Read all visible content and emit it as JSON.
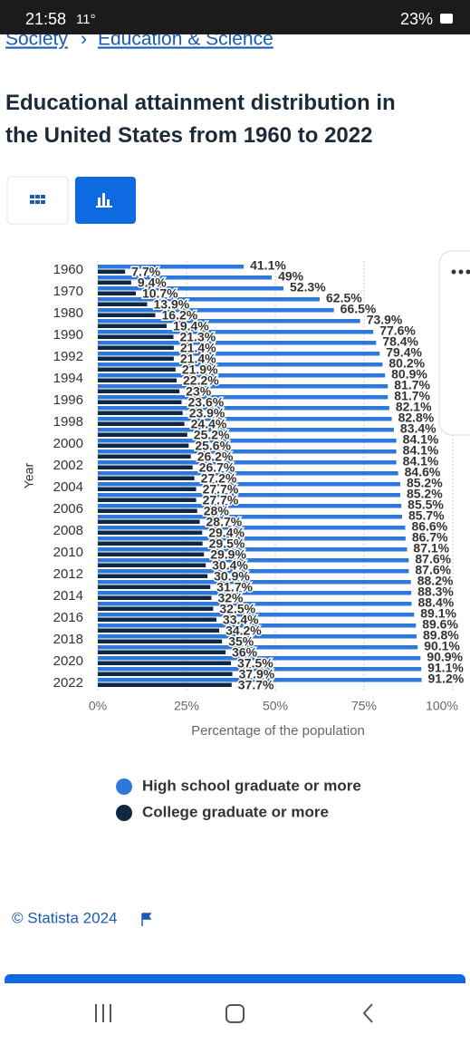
{
  "status_bar": {
    "time": "21:58",
    "temperature": "11°",
    "battery": "23%"
  },
  "breadcrumb": {
    "parent": "Society",
    "separator": "›",
    "current": "Education & Science"
  },
  "source": "© Statista 2024",
  "chart_data": {
    "type": "bar",
    "orientation": "horizontal",
    "title": "Educational attainment distribution in the United States from 1960 to 2022",
    "y_axis_title": "Year",
    "x_axis_title": "Percentage of the population",
    "categories": [
      "1960",
      null,
      "1970",
      null,
      "1980",
      null,
      "1990",
      null,
      "1992",
      null,
      "1994",
      null,
      "1996",
      null,
      "1998",
      null,
      "2000",
      null,
      "2002",
      null,
      "2004",
      null,
      "2006",
      null,
      "2008",
      null,
      "2010",
      null,
      "2012",
      null,
      "2014",
      null,
      "2016",
      null,
      "2018",
      null,
      "2020",
      null,
      "2022"
    ],
    "xlim": [
      0,
      100
    ],
    "xticks": [
      {
        "value": 0,
        "label": "0%"
      },
      {
        "value": 25,
        "label": "25%"
      },
      {
        "value": 50,
        "label": "50%"
      },
      {
        "value": 75,
        "label": "75%"
      },
      {
        "value": 100,
        "label": "100%"
      }
    ],
    "grid": true,
    "series": [
      {
        "name": "High school graduate or more",
        "color": "#2d78d8",
        "values": [
          41.1,
          49,
          52.3,
          62.5,
          66.5,
          73.9,
          77.6,
          78.4,
          79.4,
          80.2,
          80.9,
          81.7,
          81.7,
          82.1,
          82.8,
          83.4,
          84.1,
          84.1,
          84.1,
          84.6,
          85.2,
          85.2,
          85.5,
          85.7,
          86.6,
          86.7,
          87.1,
          87.6,
          87.6,
          88.2,
          88.3,
          88.4,
          89.1,
          89.6,
          89.8,
          90.1,
          90.9,
          91.1,
          91.2
        ],
        "value_labels": [
          "41.1%",
          "49%",
          "52.3%",
          "62.5%",
          "66.5%",
          "73.9%",
          "77.6%",
          "78.4%",
          "79.4%",
          "80.2%",
          "80.9%",
          "81.7%",
          "81.7%",
          "82.1%",
          "82.8%",
          "83.4%",
          "84.1%",
          "84.1%",
          "84.1%",
          "84.6%",
          "85.2%",
          "85.2%",
          "85.5%",
          "85.7%",
          "86.6%",
          "86.7%",
          "87.1%",
          "87.6%",
          "87.6%",
          "88.2%",
          "88.3%",
          "88.4%",
          "89.1%",
          "89.6%",
          "89.8%",
          "90.1%",
          "90.9%",
          "91.1%",
          "91.2%"
        ]
      },
      {
        "name": "College graduate or more",
        "color": "#0f2740",
        "values": [
          7.7,
          9.4,
          10.7,
          13.9,
          16.2,
          19.4,
          21.3,
          21.4,
          21.4,
          21.9,
          22.2,
          23,
          23.6,
          23.9,
          24.4,
          25.2,
          25.6,
          26.2,
          26.7,
          27.2,
          27.7,
          27.7,
          28,
          28.7,
          29.4,
          29.5,
          29.9,
          30.4,
          30.9,
          31.7,
          32,
          32.5,
          33.4,
          34.2,
          35,
          36,
          37.5,
          37.9,
          37.7
        ],
        "value_labels": [
          "7.7%",
          "9.4%",
          "10.7%",
          "13.9%",
          "16.2%",
          "19.4%",
          "21.3%",
          "21.4%",
          "21.4%",
          "21.9%",
          "22.2%",
          "23%",
          "23.6%",
          "23.9%",
          "24.4%",
          "25.2%",
          "25.6%",
          "26.2%",
          "26.7%",
          "27.2%",
          "27.7%",
          "27.7%",
          "28%",
          "28.7%",
          "29.4%",
          "29.5%",
          "29.9%",
          "30.4%",
          "30.9%",
          "31.7%",
          "32%",
          "32.5%",
          "33.4%",
          "34.2%",
          "35%",
          "36%",
          "37.5%",
          "37.9%",
          "37.7%"
        ]
      }
    ]
  }
}
